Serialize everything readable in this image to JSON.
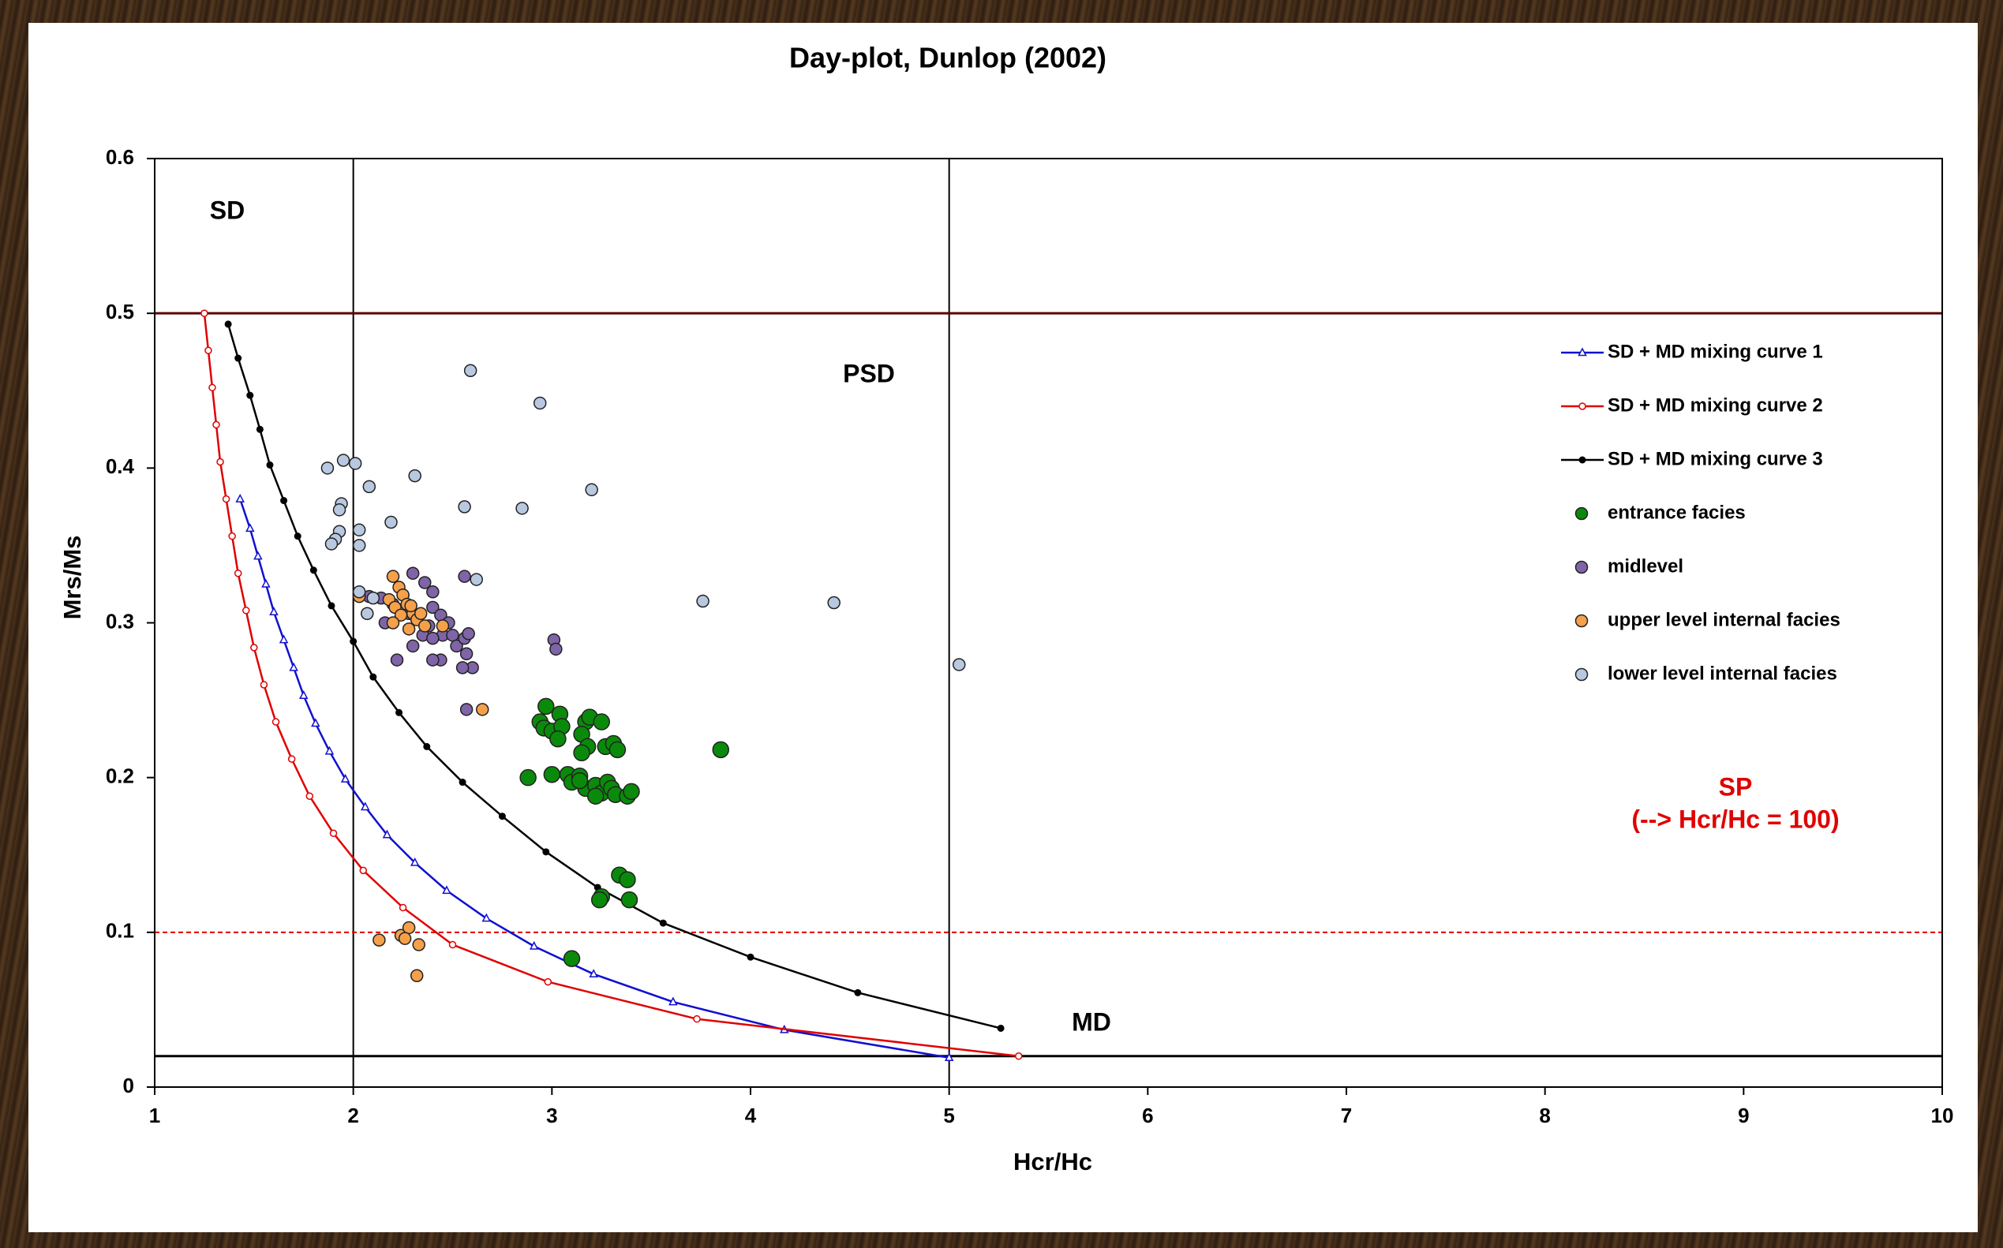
{
  "chart_data": {
    "type": "scatter",
    "title": "Day-plot, Dunlop (2002)",
    "x_label": "Hcr/Hc",
    "y_label": "Mrs/Ms",
    "xlim": [
      1,
      10
    ],
    "xticks": [
      1,
      2,
      3,
      4,
      5,
      6,
      7,
      8,
      9,
      10
    ],
    "ylim": [
      0,
      0.6
    ],
    "yticks": [
      0,
      0.1,
      0.2,
      0.3,
      0.4,
      0.5,
      0.6
    ],
    "grid": false,
    "legend": "right",
    "vlines": [
      2,
      5
    ],
    "hlines": [
      {
        "value": 0.5,
        "color": "#5a0000",
        "dashed": false
      },
      {
        "value": 0.1,
        "color": "#e00000",
        "dashed": true
      },
      {
        "value": 0.02,
        "color": "#000000",
        "dashed": false
      }
    ],
    "annotations": [
      {
        "text": "SD",
        "color": "#000000"
      },
      {
        "text": "PSD",
        "color": "#000000"
      },
      {
        "text": "MD",
        "color": "#000000"
      },
      {
        "text": "SP",
        "color": "#e00000"
      },
      {
        "text": "(--> Hcr/Hc = 100)",
        "color": "#e00000"
      }
    ],
    "series": [
      {
        "name": "SD + MD mixing curve 1",
        "color": "#1010d0",
        "kind": "line",
        "marker": "triangle",
        "x": [
          1.43,
          1.48,
          1.52,
          1.56,
          1.6,
          1.65,
          1.7,
          1.75,
          1.81,
          1.88,
          1.96,
          2.06,
          2.17,
          2.31,
          2.47,
          2.67,
          2.91,
          3.21,
          3.61,
          4.17,
          5.0
        ],
        "values": [
          0.38,
          0.361,
          0.343,
          0.325,
          0.307,
          0.289,
          0.271,
          0.253,
          0.235,
          0.217,
          0.199,
          0.181,
          0.163,
          0.145,
          0.127,
          0.109,
          0.091,
          0.073,
          0.055,
          0.037,
          0.019
        ]
      },
      {
        "name": "SD + MD mixing curve 2",
        "color": "#e00000",
        "kind": "line",
        "marker": "circle",
        "x": [
          1.25,
          1.27,
          1.29,
          1.31,
          1.33,
          1.36,
          1.39,
          1.42,
          1.46,
          1.5,
          1.55,
          1.61,
          1.69,
          1.78,
          1.9,
          2.05,
          2.25,
          2.5,
          2.98,
          3.73,
          5.35
        ],
        "values": [
          0.5,
          0.476,
          0.452,
          0.428,
          0.404,
          0.38,
          0.356,
          0.332,
          0.308,
          0.284,
          0.26,
          0.236,
          0.212,
          0.188,
          0.164,
          0.14,
          0.116,
          0.092,
          0.068,
          0.044,
          0.02
        ]
      },
      {
        "name": "SD + MD mixing curve 3",
        "color": "#000000",
        "kind": "line",
        "marker": "dot",
        "x": [
          1.37,
          1.42,
          1.48,
          1.53,
          1.58,
          1.65,
          1.72,
          1.8,
          1.89,
          2.0,
          2.1,
          2.23,
          2.37,
          2.55,
          2.75,
          2.97,
          3.23,
          3.56,
          4.0,
          4.54,
          5.26
        ],
        "values": [
          0.493,
          0.471,
          0.447,
          0.425,
          0.402,
          0.379,
          0.356,
          0.334,
          0.311,
          0.288,
          0.265,
          0.242,
          0.22,
          0.197,
          0.175,
          0.152,
          0.129,
          0.106,
          0.084,
          0.061,
          0.038
        ]
      },
      {
        "name": "entrance facies",
        "color": "#0a8a0a",
        "kind": "points",
        "marker": "large",
        "x": [
          2.97,
          3.04,
          2.94,
          2.96,
          3.0,
          3.05,
          3.03,
          3.17,
          3.19,
          3.25,
          3.15,
          3.18,
          3.27,
          3.31,
          3.33,
          3.15,
          2.88,
          3.0,
          3.08,
          3.1,
          3.14,
          3.17,
          3.22,
          3.25,
          3.28,
          3.22,
          3.3,
          3.32,
          3.38,
          3.4,
          3.85,
          3.34,
          3.38,
          3.25,
          3.24,
          3.39,
          3.1,
          3.14
        ],
        "values": [
          0.246,
          0.241,
          0.236,
          0.232,
          0.23,
          0.233,
          0.225,
          0.236,
          0.239,
          0.236,
          0.228,
          0.22,
          0.22,
          0.222,
          0.218,
          0.216,
          0.2,
          0.202,
          0.202,
          0.197,
          0.201,
          0.193,
          0.195,
          0.19,
          0.197,
          0.188,
          0.193,
          0.189,
          0.188,
          0.191,
          0.218,
          0.137,
          0.134,
          0.123,
          0.121,
          0.121,
          0.083,
          0.198
        ]
      },
      {
        "name": "midlevel",
        "color": "#7f64a8",
        "kind": "points",
        "marker": "small",
        "x": [
          2.3,
          2.36,
          2.4,
          2.56,
          2.25,
          2.2,
          2.16,
          2.28,
          2.4,
          2.44,
          2.38,
          2.45,
          2.5,
          2.52,
          2.56,
          2.58,
          2.57,
          2.6,
          2.55,
          2.44,
          2.4,
          2.3,
          2.22,
          2.14,
          2.08,
          3.01,
          3.02,
          2.57,
          2.35,
          2.48,
          2.4
        ],
        "values": [
          0.332,
          0.326,
          0.32,
          0.33,
          0.318,
          0.312,
          0.3,
          0.306,
          0.31,
          0.305,
          0.298,
          0.292,
          0.292,
          0.285,
          0.29,
          0.293,
          0.28,
          0.271,
          0.271,
          0.276,
          0.276,
          0.285,
          0.276,
          0.316,
          0.317,
          0.289,
          0.283,
          0.244,
          0.292,
          0.3,
          0.29
        ]
      },
      {
        "name": "upper level internal facies",
        "color": "#f5a04a",
        "kind": "points",
        "marker": "small",
        "x": [
          2.2,
          2.23,
          2.25,
          2.18,
          2.21,
          2.27,
          2.3,
          2.24,
          2.32,
          2.36,
          2.28,
          2.34,
          2.45,
          2.2,
          2.65,
          2.13,
          2.24,
          2.28,
          2.26,
          2.33,
          2.32,
          2.03,
          2.29
        ],
        "values": [
          0.33,
          0.323,
          0.318,
          0.315,
          0.31,
          0.312,
          0.306,
          0.305,
          0.302,
          0.298,
          0.296,
          0.306,
          0.298,
          0.3,
          0.244,
          0.095,
          0.098,
          0.103,
          0.096,
          0.092,
          0.072,
          0.317,
          0.311
        ]
      },
      {
        "name": "lower level internal facies",
        "color": "#b8c8e0",
        "kind": "points",
        "marker": "small",
        "x": [
          2.59,
          2.94,
          1.95,
          2.01,
          1.87,
          2.31,
          2.08,
          3.2,
          1.94,
          1.93,
          2.56,
          2.85,
          2.19,
          2.03,
          1.93,
          1.91,
          1.89,
          2.03,
          2.62,
          3.76,
          4.42,
          2.03,
          2.07,
          5.05,
          2.1
        ],
        "values": [
          0.463,
          0.442,
          0.405,
          0.403,
          0.4,
          0.395,
          0.388,
          0.386,
          0.377,
          0.373,
          0.375,
          0.374,
          0.365,
          0.36,
          0.359,
          0.354,
          0.351,
          0.35,
          0.328,
          0.314,
          0.313,
          0.32,
          0.306,
          0.273,
          0.316
        ]
      }
    ]
  }
}
